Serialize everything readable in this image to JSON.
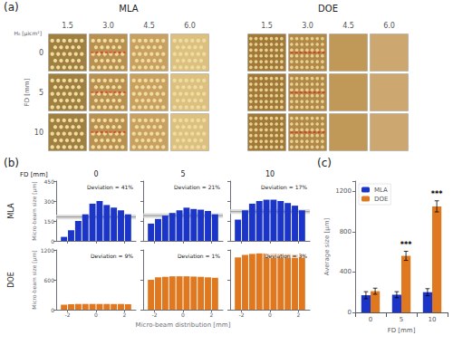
{
  "chart_data": [
    {
      "type": "images",
      "panel_label": "(a)",
      "groups": [
        "MLA",
        "DOE"
      ],
      "categories": [
        "1.5",
        "3.0",
        "4.5",
        "6.0"
      ],
      "xlabel": "H₀ [μicm²]",
      "rows": [
        "0",
        "5",
        "10"
      ],
      "ylabel": "FD [mm]",
      "color": "#ff0000"
    },
    {
      "type": "histogram",
      "panel_label": "(b)",
      "column_label": "FD [mm]",
      "title": "0",
      "row_label": "MLA",
      "bins": [
        -2.5,
        -2,
        -1.5,
        -1,
        -0.5,
        0,
        0.5,
        1,
        1.5,
        2,
        2.5
      ],
      "values": [
        30,
        80,
        150,
        200,
        280,
        300,
        270,
        250,
        230,
        200
      ],
      "color": "#1a35c8",
      "mean_line": 180,
      "mean_band": [
        162,
        198
      ],
      "annotations": [
        "Deviation = 41%"
      ],
      "xlim": [
        -2.8,
        2.8
      ],
      "xticks": [
        -2,
        0,
        2
      ],
      "ylim": [
        0,
        450
      ],
      "yticks": [
        0,
        150,
        300,
        450
      ],
      "ylabel": "Micro-beam size [μm]",
      "tick_labels": "y",
      "grid": false
    },
    {
      "type": "histogram",
      "title": "5",
      "bins": [
        -2.5,
        -2,
        -1.5,
        -1,
        -0.5,
        0,
        0.5,
        1,
        1.5,
        2,
        2.5
      ],
      "values": [
        130,
        165,
        190,
        210,
        230,
        250,
        240,
        235,
        225,
        200
      ],
      "color": "#1a35c8",
      "mean_line": 190,
      "mean_band": [
        172,
        208
      ],
      "annotations": [
        "Deviation = 21%"
      ],
      "xlim": [
        -2.8,
        2.8
      ],
      "xticks": [
        -2,
        0,
        2
      ],
      "ylim": [
        0,
        450
      ],
      "yticks": [
        0,
        150,
        300,
        450
      ],
      "tick_labels": false,
      "grid": false
    },
    {
      "type": "histogram",
      "title": "10",
      "bins": [
        -2.5,
        -2,
        -1.5,
        -1,
        -0.5,
        0,
        0.5,
        1,
        1.5,
        2,
        2.5
      ],
      "values": [
        160,
        230,
        280,
        300,
        310,
        310,
        300,
        285,
        265,
        230
      ],
      "color": "#1a35c8",
      "mean_line": 220,
      "mean_band": [
        202,
        238
      ],
      "annotations": [
        "Deviation = 17%"
      ],
      "xlim": [
        -2.8,
        2.8
      ],
      "xticks": [
        -2,
        0,
        2
      ],
      "ylim": [
        0,
        450
      ],
      "yticks": [
        0,
        150,
        300,
        450
      ],
      "tick_labels": false,
      "grid": false
    },
    {
      "type": "histogram",
      "row_label": "DOE",
      "bins": [
        -2.5,
        -2,
        -1.5,
        -1,
        -0.5,
        0,
        0.5,
        1,
        1.5,
        2,
        2.5
      ],
      "values": [
        100,
        110,
        115,
        115,
        115,
        115,
        115,
        115,
        115,
        110
      ],
      "color": "#e07820",
      "annotations": [
        "Deviation = 9%"
      ],
      "xlim": [
        -2.8,
        2.8
      ],
      "xticks": [
        -2,
        0,
        2
      ],
      "ylim": [
        0,
        1200
      ],
      "yticks": [
        0,
        600,
        1200
      ],
      "ylabel": "Micro-beam size [μm]",
      "tick_labels": true,
      "grid": false
    },
    {
      "type": "histogram",
      "bins": [
        -2.5,
        -2,
        -1.5,
        -1,
        -0.5,
        0,
        0.5,
        1,
        1.5,
        2,
        2.5
      ],
      "values": [
        600,
        650,
        660,
        670,
        670,
        670,
        665,
        660,
        650,
        640
      ],
      "color": "#e07820",
      "annotations": [
        "Deviation = 1%"
      ],
      "xlim": [
        -2.8,
        2.8
      ],
      "xticks": [
        -2,
        0,
        2
      ],
      "ylim": [
        0,
        1200
      ],
      "yticks": [
        0,
        600,
        1200
      ],
      "xlabel": "Micro-beam distribution [mm]",
      "tick_labels": "x",
      "grid": false
    },
    {
      "type": "histogram",
      "bins": [
        -2.5,
        -2,
        -1.5,
        -1,
        -0.5,
        0,
        0.5,
        1,
        1.5,
        2,
        2.5
      ],
      "values": [
        1050,
        1100,
        1120,
        1130,
        1130,
        1130,
        1125,
        1120,
        1110,
        1095
      ],
      "color": "#e07820",
      "annotations": [
        "Deviation = 3%"
      ],
      "xlim": [
        -2.8,
        2.8
      ],
      "xticks": [
        -2,
        0,
        2
      ],
      "ylim": [
        0,
        1200
      ],
      "yticks": [
        0,
        600,
        1200
      ],
      "tick_labels": "x",
      "grid": false
    },
    {
      "type": "bar",
      "panel_label": "(c)",
      "categories": [
        "0",
        "5",
        "10"
      ],
      "series": [
        {
          "name": "MLA",
          "color": "#1a35c8",
          "values": [
            170,
            175,
            200
          ],
          "errors": [
            35,
            30,
            35
          ]
        },
        {
          "name": "DOE",
          "color": "#e07820",
          "values": [
            210,
            560,
            1050
          ],
          "errors": [
            30,
            45,
            55
          ],
          "significance": [
            null,
            "***",
            "***"
          ]
        }
      ],
      "ylim": [
        0,
        1300
      ],
      "yticks": [
        0,
        400,
        800,
        1200
      ],
      "xlabel": "FD [mm]",
      "ylabel": "Average size [μm]",
      "legend": "upper left",
      "grid": false
    }
  ]
}
